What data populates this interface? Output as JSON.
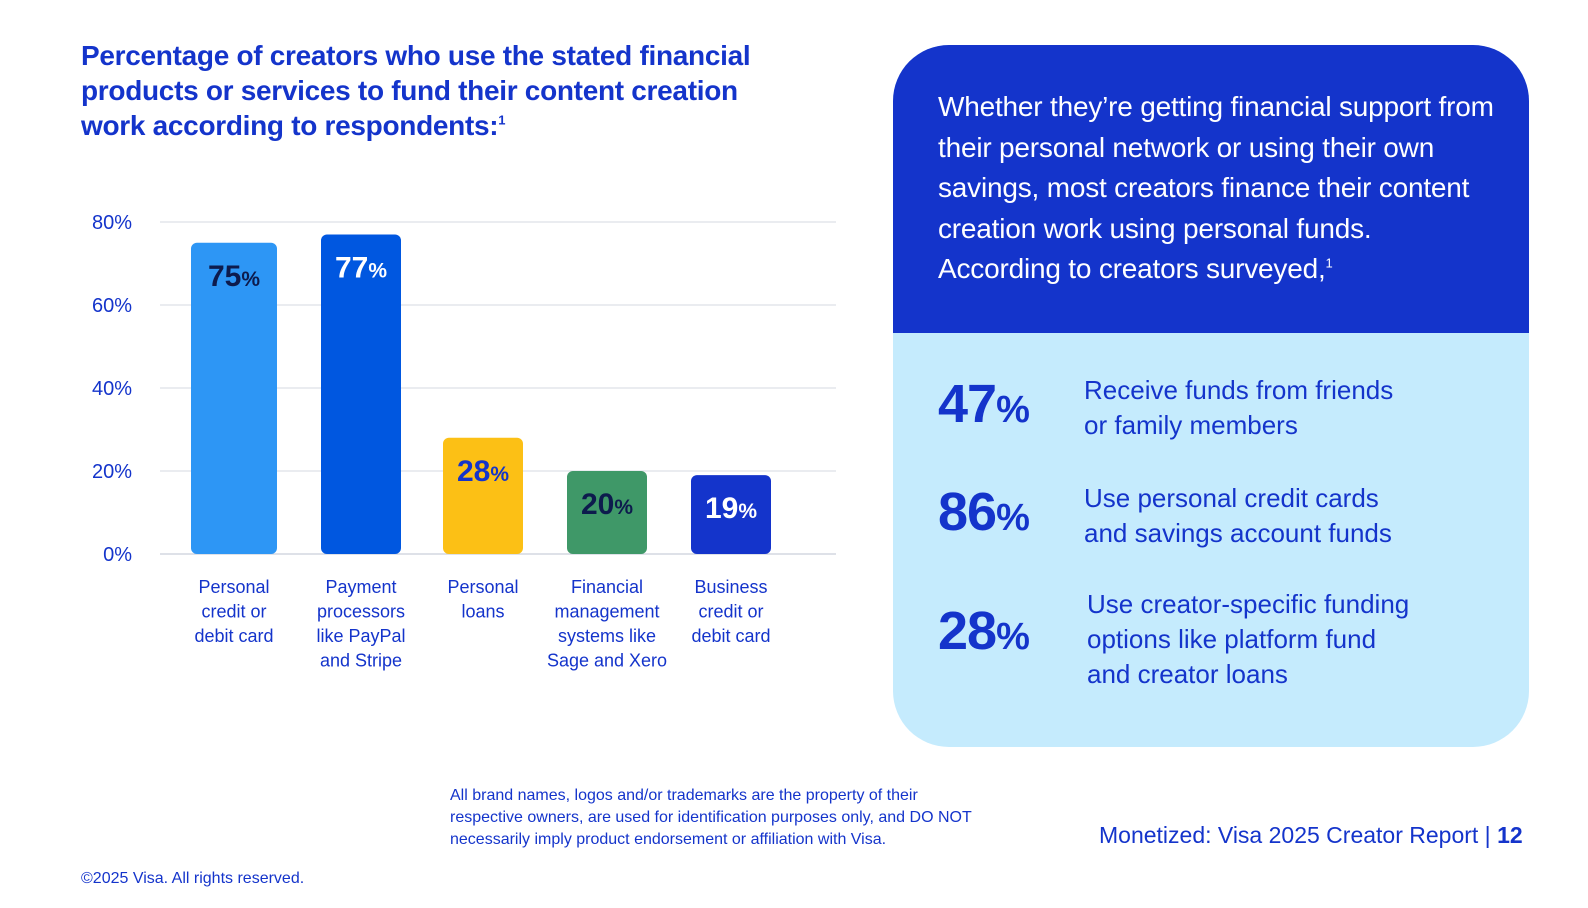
{
  "chart_title": "Percentage of creators who use the stated financial products or services to fund their content creation work according to respondents:",
  "chart_title_ref": "1",
  "chart_data": {
    "type": "bar",
    "title": "Percentage of creators who use the stated financial products or services to fund their content creation work according to respondents:",
    "ylabel": "",
    "xlabel": "",
    "ylim": [
      0,
      80
    ],
    "yticks": [
      "0%",
      "20%",
      "40%",
      "60%",
      "80%"
    ],
    "grid": true,
    "categories": [
      [
        "Personal",
        "credit or",
        "debit card"
      ],
      [
        "Payment",
        "processors",
        "like PayPal",
        "and Stripe"
      ],
      [
        "Personal",
        "loans"
      ],
      [
        "Financial",
        "management",
        "systems like",
        "Sage and Xero"
      ],
      [
        "Business",
        "credit or",
        "debit card"
      ]
    ],
    "values": [
      75,
      77,
      28,
      20,
      19
    ],
    "label_suffix": "%",
    "colors": [
      "#2d96f5",
      "#0057e0",
      "#fcc015",
      "#3f9868",
      "#1434cb"
    ],
    "label_colors": [
      "#0d1b4d",
      "#ffffff",
      "#1434cb",
      "#0d1b4d",
      "#ffffff"
    ]
  },
  "callout": {
    "intro": "Whether they’re getting financial support from their personal network or using their own savings, most creators finance their content creation work using personal funds. According to creators surveyed,",
    "intro_ref": "1",
    "stats": [
      {
        "value": "47",
        "unit": "%",
        "line1": "Receive funds from friends",
        "line2": "or family members",
        "line3": ""
      },
      {
        "value": "86",
        "unit": "%",
        "line1": "Use personal credit cards",
        "line2": "and savings account funds",
        "line3": ""
      },
      {
        "value": "28",
        "unit": "%",
        "line1": "Use creator-specific funding",
        "line2": "options like platform fund",
        "line3": "and creator loans"
      }
    ]
  },
  "footer": {
    "disclaimer_1": "All brand names, logos and/or trademarks are the property of their",
    "disclaimer_2": "respective owners, are used for identification purposes only, and DO NOT",
    "disclaimer_3": "necessarily imply product endorsement or affiliation with Visa.",
    "copyright": "©2025 Visa. All rights reserved.",
    "report": "Monetized: Visa 2025 Creator Report",
    "separator": " | ",
    "page": "12"
  }
}
